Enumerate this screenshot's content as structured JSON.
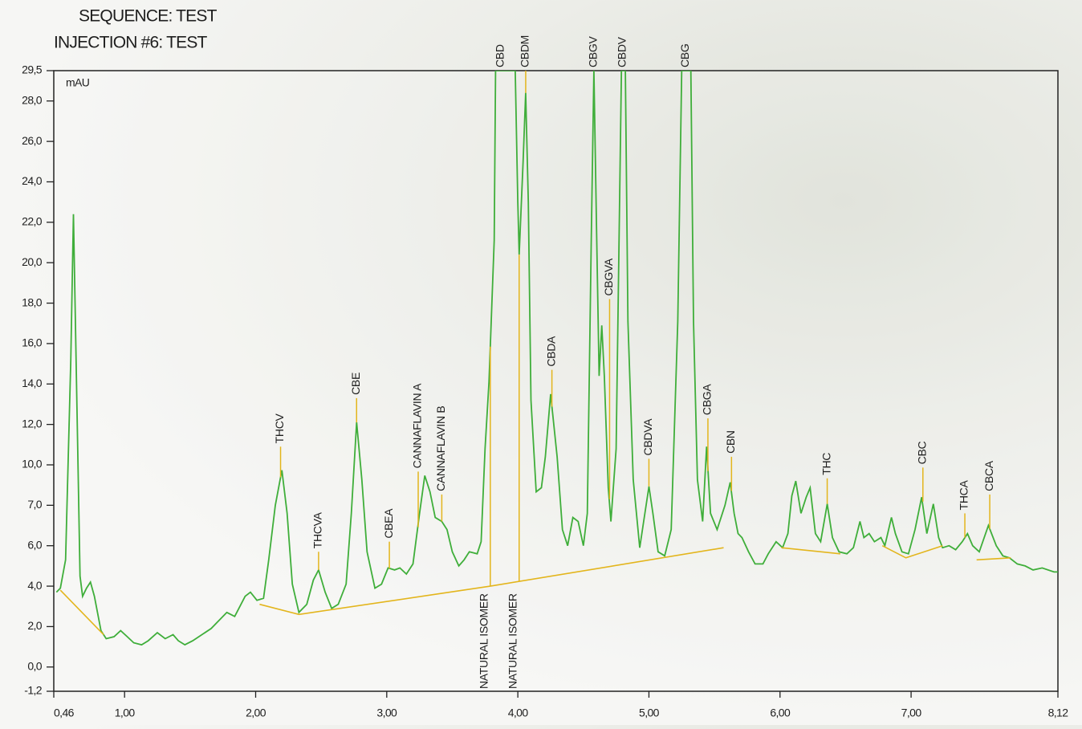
{
  "chart_data": {
    "type": "line",
    "title": "SEQUENCE: TEST",
    "subtitle": "INJECTION #6: TEST",
    "y_label": "mAU",
    "xlim": [
      0.46,
      8.12
    ],
    "xticks": [
      {
        "value": 0.46,
        "label": "0,46"
      },
      {
        "value": 1,
        "label": "1,00"
      },
      {
        "value": 2,
        "label": "2,00"
      },
      {
        "value": 3,
        "label": "3,00"
      },
      {
        "value": 4,
        "label": "4,00"
      },
      {
        "value": 5,
        "label": "5,00"
      },
      {
        "value": 6,
        "label": "6,00"
      },
      {
        "value": 7,
        "label": "7,00"
      },
      {
        "value": 8.12,
        "label": "8,12"
      }
    ],
    "ylim": [
      -1.2,
      29.5
    ],
    "yticks": [
      {
        "value": 29.5,
        "label": "29,5"
      },
      {
        "value": 28,
        "label": "28,0"
      },
      {
        "value": 26,
        "label": "26,0"
      },
      {
        "value": 24,
        "label": "24,0"
      },
      {
        "value": 22,
        "label": "22,0"
      },
      {
        "value": 20,
        "label": "20,0"
      },
      {
        "value": 18,
        "label": "18,0"
      },
      {
        "value": 16,
        "label": "16,0"
      },
      {
        "value": 14,
        "label": "14,0"
      },
      {
        "value": 12,
        "label": "12,0"
      },
      {
        "value": 10,
        "label": "10,0"
      },
      {
        "value": 7,
        "label": "7,0"
      },
      {
        "value": 6,
        "label": "6,0"
      },
      {
        "value": 4,
        "label": "4,0"
      },
      {
        "value": 2,
        "label": "2,0"
      },
      {
        "value": 0,
        "label": "0,0"
      },
      {
        "value": -1.2,
        "label": "-1,2"
      }
    ],
    "series": [
      {
        "color": "#3fae3a",
        "x": [
          0.48,
          0.51,
          0.55,
          0.59,
          0.61,
          0.63,
          0.66,
          0.68,
          0.71,
          0.74,
          0.77,
          0.82,
          0.86,
          0.92,
          0.97,
          1.02,
          1.07,
          1.13,
          1.18,
          1.25,
          1.31,
          1.37,
          1.41,
          1.46,
          1.52,
          1.66,
          1.78,
          1.84,
          1.92,
          1.96,
          2.01,
          2.06,
          2.1,
          2.15,
          2.2,
          2.24,
          2.28,
          2.33,
          2.39,
          2.44,
          2.48,
          2.53,
          2.58,
          2.63,
          2.69,
          2.73,
          2.77,
          2.81,
          2.85,
          2.91,
          2.96,
          3.01,
          3.06,
          3.1,
          3.15,
          3.2,
          3.25,
          3.29,
          3.33,
          3.37,
          3.42,
          3.46,
          3.5,
          3.55,
          3.59,
          3.63,
          3.69,
          3.72,
          3.75,
          3.78,
          3.82,
          3.83,
          3.98,
          4.0,
          4.01,
          4.04,
          4.06,
          4.08,
          4.1,
          4.14,
          4.18,
          4.21,
          4.25,
          4.3,
          4.34,
          4.38,
          4.42,
          4.46,
          4.5,
          4.53,
          4.56,
          4.58,
          4.6,
          4.62,
          4.64,
          4.66,
          4.69,
          4.71,
          4.75,
          4.79,
          4.82,
          4.84,
          4.88,
          4.93,
          4.96,
          5.0,
          5.03,
          5.07,
          5.12,
          5.17,
          5.22,
          5.25,
          5.32,
          5.34,
          5.37,
          5.41,
          5.44,
          5.47,
          5.52,
          5.58,
          5.62,
          5.65,
          5.68,
          5.71,
          5.76,
          5.81,
          5.87,
          5.91,
          5.97,
          6.02,
          6.06,
          6.09,
          6.12,
          6.16,
          6.2,
          6.23,
          6.27,
          6.31,
          6.36,
          6.4,
          6.45,
          6.51,
          6.56,
          6.61,
          6.64,
          6.68,
          6.72,
          6.77,
          6.8,
          6.85,
          6.88,
          6.93,
          6.98,
          7.03,
          7.08,
          7.12,
          7.17,
          7.21,
          7.24,
          7.29,
          7.34,
          7.39,
          7.43,
          7.47,
          7.52,
          7.59,
          7.65,
          7.7,
          7.75,
          7.81,
          7.87,
          7.93,
          8.0,
          8.09,
          8.12
        ],
        "values": [
          3.7,
          3.9,
          5.3,
          15.2,
          22.4,
          15.2,
          4.5,
          3.5,
          3.9,
          4.2,
          3.5,
          1.8,
          1.4,
          1.5,
          1.8,
          1.5,
          1.2,
          1.1,
          1.3,
          1.7,
          1.4,
          1.6,
          1.3,
          1.1,
          1.3,
          1.9,
          2.7,
          2.5,
          3.5,
          3.7,
          3.3,
          3.4,
          5.3,
          7.0,
          9.6,
          6.8,
          4.1,
          2.7,
          3.1,
          4.3,
          4.8,
          3.7,
          2.9,
          3.1,
          4.1,
          6.8,
          12.1,
          8.9,
          5.7,
          3.9,
          4.1,
          4.9,
          4.8,
          4.9,
          4.6,
          5.1,
          6.8,
          9.2,
          8.0,
          6.7,
          6.6,
          6.4,
          5.7,
          5.0,
          5.3,
          5.7,
          5.6,
          6.1,
          10.8,
          14.1,
          21.1,
          29.5,
          29.5,
          23.0,
          20.4,
          25.0,
          28.4,
          23.0,
          13.2,
          8.0,
          8.3,
          10.4,
          13.5,
          10.4,
          6.4,
          6.0,
          6.7,
          6.6,
          6.0,
          6.8,
          21.1,
          29.5,
          21.9,
          14.4,
          16.9,
          14.4,
          8.3,
          6.6,
          10.8,
          29.5,
          29.5,
          17.1,
          8.9,
          5.9,
          6.6,
          8.4,
          6.8,
          5.7,
          5.5,
          6.4,
          17.1,
          29.5,
          29.5,
          17.1,
          8.9,
          6.6,
          10.9,
          6.8,
          6.4,
          7.0,
          8.7,
          6.8,
          6.3,
          6.2,
          5.7,
          5.1,
          5.1,
          5.6,
          6.1,
          5.9,
          6.3,
          7.7,
          8.8,
          6.8,
          7.6,
          8.3,
          6.3,
          6.1,
          7.1,
          6.2,
          5.7,
          5.6,
          5.9,
          6.6,
          6.2,
          6.3,
          6.1,
          6.2,
          6.0,
          6.7,
          6.3,
          5.7,
          5.6,
          6.4,
          7.6,
          6.3,
          7.1,
          6.2,
          5.9,
          6.0,
          5.8,
          6.1,
          6.3,
          6.0,
          5.7,
          6.5,
          6.0,
          5.5,
          5.4,
          5.1,
          5.0,
          4.8,
          4.9,
          4.7,
          4.7
        ]
      },
      {
        "color": "#e3b51c",
        "x": [
          0.51,
          0.84,
          null,
          2.03,
          2.33,
          3.79,
          5.57,
          null,
          6.01,
          6.46,
          null,
          6.78,
          6.96,
          7.24,
          null,
          7.5,
          7.76
        ],
        "values": [
          3.8,
          1.6,
          null,
          3.1,
          2.6,
          4.0,
          5.9,
          null,
          5.9,
          5.6,
          null,
          6.0,
          5.4,
          6.0,
          null,
          5.3,
          5.4
        ]
      }
    ],
    "label_color": "#e3b51c",
    "peak_labels": [
      {
        "label": "THCV",
        "x": 2.19,
        "y": 10.9
      },
      {
        "label": "THCVA",
        "x": 2.48,
        "y": 5.7
      },
      {
        "label": "CBE",
        "x": 2.77,
        "y": 13.3
      },
      {
        "label": "CBEA",
        "x": 3.02,
        "y": 6.1
      },
      {
        "label": "CANNAFLAVIN A",
        "x": 3.24,
        "y": 9.5
      },
      {
        "label": "CANNAFLAVIN B",
        "x": 3.42,
        "y": 7.8
      },
      {
        "label": "CBD",
        "x": 3.87,
        "y": 29.5
      },
      {
        "label": "CBDM",
        "x": 4.06,
        "y": 29.5
      },
      {
        "label": "CBDA",
        "x": 4.26,
        "y": 14.7
      },
      {
        "label": "CBGV",
        "x": 4.58,
        "y": 29.5
      },
      {
        "label": "CBGVA",
        "x": 4.7,
        "y": 18.2
      },
      {
        "label": "CBDV",
        "x": 4.8,
        "y": 29.5
      },
      {
        "label": "CBDVA",
        "x": 5.0,
        "y": 10.3
      },
      {
        "label": "CBG",
        "x": 5.28,
        "y": 29.5
      },
      {
        "label": "CBGA",
        "x": 5.45,
        "y": 12.3
      },
      {
        "label": "CBN",
        "x": 5.63,
        "y": 10.4
      },
      {
        "label": "THC",
        "x": 6.36,
        "y": 9.0
      },
      {
        "label": "CBC",
        "x": 7.09,
        "y": 9.8
      },
      {
        "label": "THCA",
        "x": 7.41,
        "y": 6.8
      },
      {
        "label": "CBCA",
        "x": 7.6,
        "y": 7.8
      }
    ],
    "bottom_labels": [
      {
        "label": "NATURAL ISOMER",
        "x": 3.79
      },
      {
        "label": "NATURAL ISOMER",
        "x": 4.01
      }
    ]
  }
}
